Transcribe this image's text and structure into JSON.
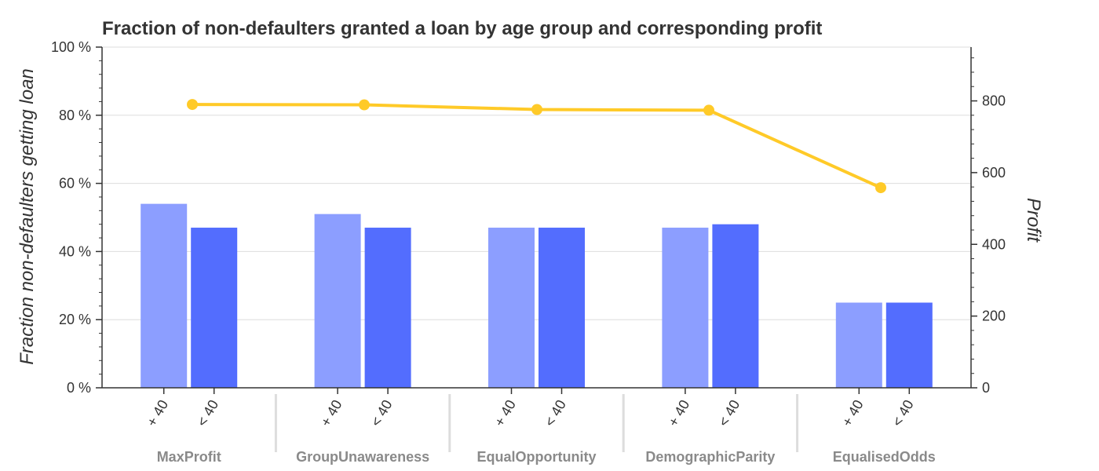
{
  "chart_data": {
    "type": "bar",
    "title": "Fraction of non-defaulters granted a loan by age group and corresponding profit",
    "ylabel_left": "Fraction non-defaulters getting loan",
    "ylabel_right": "Profit",
    "categories": [
      "MaxProfit",
      "GroupUnawareness",
      "EqualOpportunity",
      "DemographicParity",
      "EqualisedOdds"
    ],
    "subcategories": [
      "+ 40",
      "< 40"
    ],
    "series": [
      {
        "name": "+ 40",
        "axis": "left",
        "color": "#8C9EFF",
        "values": [
          0.54,
          0.51,
          0.47,
          0.47,
          0.25
        ]
      },
      {
        "name": "< 40",
        "axis": "left",
        "color": "#536DFE",
        "values": [
          0.47,
          0.47,
          0.47,
          0.48,
          0.25
        ]
      },
      {
        "name": "Profit",
        "type": "line",
        "axis": "right",
        "color": "#FFCA28",
        "values": [
          790,
          789,
          776,
          774,
          558
        ]
      }
    ],
    "ylim_left": [
      0,
      1
    ],
    "ylim_right": [
      0,
      950
    ],
    "yticks_left": [
      "0 %",
      "20 %",
      "40 %",
      "60 %",
      "80 %",
      "100 %"
    ],
    "yticks_right": [
      "0",
      "200",
      "400",
      "600",
      "800"
    ],
    "grid": true
  }
}
